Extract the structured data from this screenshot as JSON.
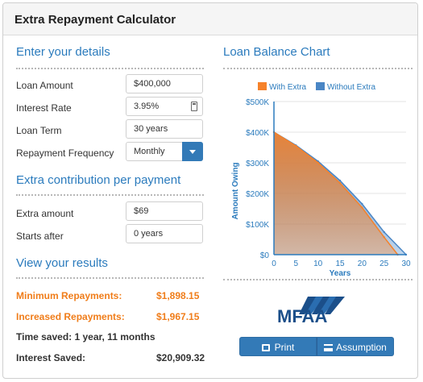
{
  "header": {
    "title": "Extra Repayment Calculator"
  },
  "details": {
    "title": "Enter your details",
    "loan_amount": {
      "label": "Loan Amount",
      "value": "$400,000"
    },
    "interest_rate": {
      "label": "Interest Rate",
      "value": "3.95%"
    },
    "loan_term": {
      "label": "Loan Term",
      "value": "30 years"
    },
    "frequency": {
      "label": "Repayment Frequency",
      "value": "Monthly"
    }
  },
  "extra": {
    "title": "Extra contribution per payment",
    "amount": {
      "label": "Extra amount",
      "value": "$69"
    },
    "starts": {
      "label": "Starts after",
      "value": "0 years"
    }
  },
  "results": {
    "title": "View your results",
    "min_label": "Minimum Repayments:",
    "min_value": "$1,898.15",
    "inc_label": "Increased Repayments:",
    "inc_value": "$1,967.15",
    "time_saved": "Time saved: 1 year, 11 months",
    "interest_label": "Interest Saved:",
    "interest_value": "$20,909.32"
  },
  "chart_section": {
    "title": "Loan Balance Chart"
  },
  "chart_data": {
    "type": "area",
    "ylabel": "Amount Owing",
    "xlabel": "Years",
    "xlim": [
      0,
      30
    ],
    "ylim": [
      0,
      500000
    ],
    "x_ticks": [
      "0",
      "5",
      "10",
      "15",
      "20",
      "25",
      "30"
    ],
    "y_ticks": [
      "$0",
      "$100K",
      "$200K",
      "$300K",
      "$400K",
      "$500K"
    ],
    "legend_placement": "top",
    "series": [
      {
        "name": "With Extra",
        "color": "#f6822a",
        "x": [
          0,
          5,
          10,
          15,
          20,
          25,
          28.1
        ],
        "values": [
          400000,
          355000,
          300000,
          234000,
          154000,
          57000,
          0
        ]
      },
      {
        "name": "Without Extra",
        "color": "#4a86c5",
        "x": [
          0,
          5,
          10,
          15,
          20,
          25,
          30
        ],
        "values": [
          400000,
          357000,
          305000,
          242000,
          166000,
          74000,
          0
        ]
      }
    ]
  },
  "logo": {
    "text": "MFAA"
  },
  "buttons": {
    "print": "Print",
    "assumption": "Assumption"
  },
  "colors": {
    "accent": "#2b7bbd",
    "button": "#337ab7",
    "highlight": "#f07d1a"
  }
}
